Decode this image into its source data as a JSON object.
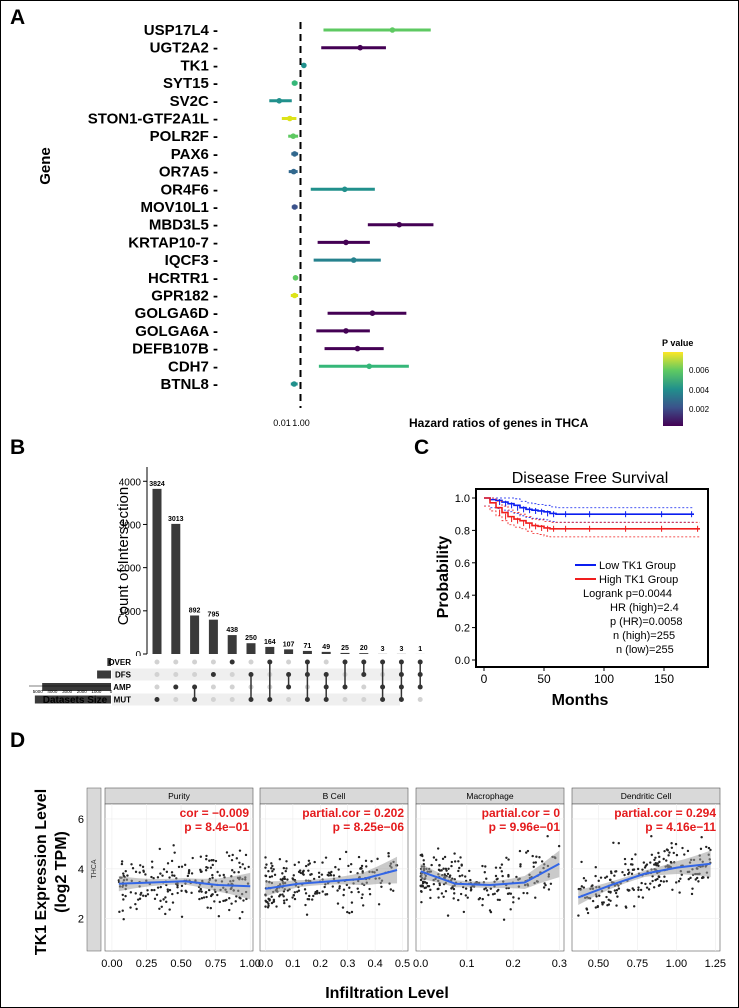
{
  "panels": {
    "a": "A",
    "b": "B",
    "c": "C",
    "d": "D"
  },
  "chart_data": [
    {
      "id": "forest",
      "type": "scatter",
      "title": "Hazard ratios of genes in THCA",
      "ylabel": "Gene",
      "x_ticks": [
        "0.01",
        "1.00"
      ],
      "legend": {
        "title": "P value",
        "ticks": [
          "0.006",
          "0.004",
          "0.002"
        ],
        "colors": [
          "#fde725",
          "#35b779",
          "#21908c",
          "#31688e",
          "#440154"
        ]
      },
      "genes": [
        {
          "name": "USP17L4",
          "hr": 10.5,
          "low": 1.8,
          "high": 28,
          "color": "#5ec962"
        },
        {
          "name": "UGT2A2",
          "hr": 4.6,
          "low": 1.7,
          "high": 8.9,
          "color": "#440154"
        },
        {
          "name": "TK1",
          "hr": 1.09,
          "low": 1.04,
          "high": 1.12,
          "color": "#21908c"
        },
        {
          "name": "SYT15",
          "hr": 0.86,
          "low": 0.8,
          "high": 0.93,
          "color": "#35b779"
        },
        {
          "name": "SV2C",
          "hr": 0.58,
          "low": 0.45,
          "high": 0.8,
          "color": "#21908c"
        },
        {
          "name": "STON1-GTF2A1L",
          "hr": 0.76,
          "low": 0.62,
          "high": 0.9,
          "color": "#dde318"
        },
        {
          "name": "POLR2F",
          "hr": 0.83,
          "low": 0.73,
          "high": 0.94,
          "color": "#5ec962"
        },
        {
          "name": "PAX6",
          "hr": 0.86,
          "low": 0.79,
          "high": 0.94,
          "color": "#31688e"
        },
        {
          "name": "OR7A5",
          "hr": 0.84,
          "low": 0.74,
          "high": 0.93,
          "color": "#31688e"
        },
        {
          "name": "OR4F6",
          "hr": 3.1,
          "low": 1.3,
          "high": 6.7,
          "color": "#21908c"
        },
        {
          "name": "MOV10L1",
          "hr": 0.86,
          "low": 0.8,
          "high": 0.93,
          "color": "#3b528b"
        },
        {
          "name": "MBD3L5",
          "hr": 12.5,
          "low": 5.6,
          "high": 30,
          "color": "#440154"
        },
        {
          "name": "KRTAP10-7",
          "hr": 3.2,
          "low": 1.55,
          "high": 5.9,
          "color": "#440154"
        },
        {
          "name": "IQCF3",
          "hr": 3.9,
          "low": 1.4,
          "high": 7.8,
          "color": "#26828e"
        },
        {
          "name": "HCRTR1",
          "hr": 0.88,
          "low": 0.83,
          "high": 0.94,
          "color": "#5ec962"
        },
        {
          "name": "GPR182",
          "hr": 0.86,
          "low": 0.78,
          "high": 0.94,
          "color": "#dde318"
        },
        {
          "name": "GOLGA6D",
          "hr": 6.3,
          "low": 2.0,
          "high": 15,
          "color": "#440154"
        },
        {
          "name": "GOLGA6A",
          "hr": 3.2,
          "low": 1.5,
          "high": 5.9,
          "color": "#440154"
        },
        {
          "name": "DEFB107B",
          "hr": 4.3,
          "low": 1.85,
          "high": 8.4,
          "color": "#440154"
        },
        {
          "name": "CDH7",
          "hr": 5.8,
          "low": 1.6,
          "high": 16,
          "color": "#35b779"
        },
        {
          "name": "BTNL8",
          "hr": 0.85,
          "low": 0.78,
          "high": 0.93,
          "color": "#21908c"
        }
      ]
    },
    {
      "id": "upset",
      "type": "bar",
      "ylabel": "Count of Intersection",
      "y_ticks": [
        0,
        1000,
        2000,
        3000,
        4000
      ],
      "ymax": 4400,
      "values": [
        3824,
        3013,
        892,
        795,
        438,
        250,
        164,
        107,
        71,
        49,
        25,
        20,
        3,
        3,
        1
      ],
      "sets": [
        "OVER",
        "DFS",
        "AMP",
        "MUT"
      ],
      "set_sizes": [
        250,
        950,
        4700,
        5200
      ],
      "set_size_ticks": [
        "5000",
        "4000",
        "3000",
        "2000",
        "1000",
        "0"
      ],
      "set_size_max": 5600,
      "set_size_label": "Datasets Size",
      "memberships": [
        [
          3
        ],
        [
          2
        ],
        [
          3,
          2
        ],
        [
          1
        ],
        [
          0
        ],
        [
          3,
          1
        ],
        [
          3,
          0
        ],
        [
          2,
          1
        ],
        [
          3,
          1,
          0
        ],
        [
          3,
          2,
          1
        ],
        [
          2,
          0
        ],
        [
          1,
          0
        ],
        [
          3,
          2,
          0
        ],
        [
          3,
          2,
          1,
          0
        ],
        [
          2,
          1,
          0
        ]
      ]
    },
    {
      "id": "km",
      "type": "line",
      "title": "Disease Free Survival",
      "xlabel": "Months",
      "ylabel": "Probability",
      "x_ticks": [
        0,
        50,
        100,
        150
      ],
      "xlim": [
        0,
        180
      ],
      "y_ticks": [
        "0.0",
        "0.2",
        "0.4",
        "0.6",
        "0.8",
        "1.0"
      ],
      "ylim": [
        0,
        1
      ],
      "series": [
        {
          "name": "Low TK1 Group",
          "color": "#0b1ef0",
          "x": [
            0,
            5,
            10,
            15,
            20,
            25,
            30,
            35,
            40,
            45,
            50,
            55,
            60,
            70,
            90,
            120,
            150,
            175
          ],
          "y": [
            1.0,
            0.99,
            0.985,
            0.975,
            0.965,
            0.955,
            0.94,
            0.93,
            0.925,
            0.92,
            0.915,
            0.905,
            0.9,
            0.9,
            0.9,
            0.9,
            0.9,
            0.9
          ]
        },
        {
          "name": "High TK1 Group",
          "color": "#f01e1e",
          "x": [
            0,
            5,
            10,
            15,
            20,
            25,
            30,
            35,
            40,
            45,
            50,
            55,
            60,
            70,
            90,
            120,
            150,
            180
          ],
          "y": [
            1.0,
            0.97,
            0.94,
            0.91,
            0.885,
            0.87,
            0.86,
            0.845,
            0.83,
            0.825,
            0.815,
            0.81,
            0.81,
            0.81,
            0.81,
            0.81,
            0.81,
            0.81
          ]
        }
      ],
      "stats": [
        "Logrank p=0.0044",
        "HR (high)=2.4",
        "p (HR)=0.0058",
        "n (high)=255",
        "n (low)=255"
      ]
    },
    {
      "id": "timer",
      "type": "scatter",
      "ylabel_lines": [
        "TK1 Expression Level",
        "(log2 TPM)"
      ],
      "xlabel": "Infiltration Level",
      "strip": "THCA",
      "y_ticks": [
        2,
        4,
        6
      ],
      "ylim": [
        0.7,
        6.6
      ],
      "facets": [
        {
          "title": "Purity",
          "stat1": "cor = −0.009",
          "stat2": "p = 8.4e−01",
          "xlim": [
            -0.05,
            1.02
          ],
          "x_ticks": [
            0,
            0.25,
            0.5,
            0.75,
            1
          ],
          "x_tick_labels": [
            "0.00",
            "0.25",
            "0.50",
            "0.75",
            "1.00"
          ],
          "x_range": [
            0.05,
            1.0
          ],
          "trend": [
            3.4,
            3.45,
            3.5,
            3.35,
            3.3
          ]
        },
        {
          "title": "B Cell",
          "stat1": "partial.cor = 0.202",
          "stat2": "p = 8.25e−06",
          "xlim": [
            -0.02,
            0.52
          ],
          "x_ticks": [
            0,
            0.1,
            0.2,
            0.3,
            0.4,
            0.5
          ],
          "x_tick_labels": [
            "0.0",
            "0.1",
            "0.2",
            "0.3",
            "0.4",
            "0.5"
          ],
          "x_range": [
            0.0,
            0.48
          ],
          "trend": [
            3.2,
            3.4,
            3.5,
            3.6,
            3.95
          ]
        },
        {
          "title": "Macrophage",
          "stat1": "partial.cor = 0",
          "stat2": "p = 9.96e−01",
          "xlim": [
            -0.01,
            0.31
          ],
          "x_ticks": [
            0,
            0.1,
            0.2,
            0.3
          ],
          "x_tick_labels": [
            "0.0",
            "0.1",
            "0.2",
            "0.3"
          ],
          "x_range": [
            0.0,
            0.3
          ],
          "trend": [
            3.9,
            3.4,
            3.35,
            3.45,
            4.2
          ]
        },
        {
          "title": "Dendritic Cell",
          "stat1": "partial.cor = 0.294",
          "stat2": "p = 4.16e−11",
          "xlim": [
            0.33,
            1.28
          ],
          "x_ticks": [
            0.5,
            0.75,
            1.0,
            1.25
          ],
          "x_tick_labels": [
            "0.50",
            "0.75",
            "1.00",
            "1.25"
          ],
          "x_range": [
            0.37,
            1.22
          ],
          "trend": [
            2.85,
            3.35,
            3.8,
            4.05,
            4.2
          ]
        }
      ]
    }
  ]
}
